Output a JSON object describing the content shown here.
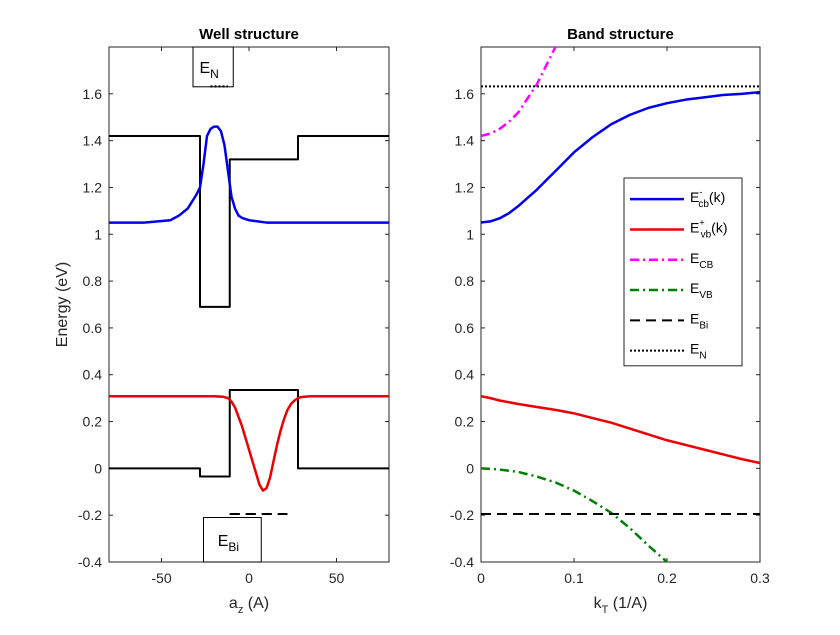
{
  "colors": {
    "axis": "#262626",
    "ecb": "#0000ee",
    "evb": "#ee0000",
    "ECB": "#ff00ff",
    "EVB": "#008000",
    "level": "#000000"
  },
  "chart_data": [
    {
      "type": "line",
      "title": "Well structure",
      "xlabel": "a",
      "xlabel_sub": "z",
      "xlabel_rest": " (A)",
      "ylabel": "Energy (eV)",
      "xlim": [
        -80,
        80
      ],
      "ylim": [
        -0.4,
        1.8
      ],
      "xticks": [
        -50,
        0,
        50
      ],
      "xtick_labels": [
        "-50",
        "0",
        "50"
      ],
      "yticks": [
        -0.4,
        -0.2,
        0,
        0.2,
        0.4,
        0.6,
        0.8,
        1,
        1.2,
        1.4,
        1.6
      ],
      "ytick_labels": [
        "-0.4",
        "-0.2",
        "0",
        "0.2",
        "0.4",
        "0.6",
        "0.8",
        "1",
        "1.2",
        "1.4",
        "1.6"
      ],
      "grid": false,
      "series": [
        {
          "key": "cb_edge",
          "color": "#000000",
          "style": "solid",
          "x": [
            -80,
            -28,
            -28,
            -11,
            -11,
            28,
            28,
            80
          ],
          "y": [
            1.42,
            1.42,
            0.69,
            0.69,
            1.32,
            1.32,
            1.42,
            1.42
          ]
        },
        {
          "key": "vb_edge",
          "color": "#000000",
          "style": "solid",
          "x": [
            -80,
            -28,
            -28,
            -11,
            -11,
            28,
            28,
            80
          ],
          "y": [
            0,
            0,
            -0.035,
            -0.035,
            0.335,
            0.335,
            0,
            0
          ]
        },
        {
          "key": "cb_state",
          "color": "#0000ee",
          "style": "solid",
          "x": [
            -80,
            -60,
            -45,
            -40,
            -35,
            -30,
            -28,
            -26,
            -24,
            -22,
            -20,
            -18,
            -16,
            -14,
            -12,
            -10,
            -8,
            -6,
            -4,
            0,
            10,
            30,
            80
          ],
          "y": [
            1.05,
            1.05,
            1.06,
            1.08,
            1.11,
            1.17,
            1.2,
            1.3,
            1.42,
            1.45,
            1.46,
            1.46,
            1.44,
            1.38,
            1.27,
            1.16,
            1.11,
            1.08,
            1.07,
            1.06,
            1.05,
            1.05,
            1.05
          ]
        },
        {
          "key": "vb_state",
          "color": "#ee0000",
          "style": "solid",
          "x": [
            -80,
            -20,
            -15,
            -12,
            -10,
            -8,
            -6,
            -4,
            -2,
            0,
            2,
            4,
            6,
            8,
            10,
            12,
            14,
            16,
            18,
            20,
            22,
            24,
            26,
            28,
            30,
            35,
            80
          ],
          "y": [
            0.308,
            0.308,
            0.306,
            0.3,
            0.285,
            0.26,
            0.22,
            0.18,
            0.13,
            0.08,
            0.03,
            -0.02,
            -0.07,
            -0.095,
            -0.085,
            -0.04,
            0.03,
            0.1,
            0.16,
            0.21,
            0.25,
            0.275,
            0.29,
            0.3,
            0.305,
            0.308,
            0.308
          ]
        },
        {
          "key": "EN_marker",
          "color": "#000000",
          "style": "dotted",
          "x": [
            -22,
            -12
          ],
          "y": [
            1.632,
            1.632
          ]
        },
        {
          "key": "EBi_marker",
          "color": "#000000",
          "style": "dashed",
          "x": [
            -11,
            22
          ],
          "y": [
            -0.195,
            -0.195
          ]
        }
      ],
      "annotations": [
        {
          "key": "EN",
          "text": "E",
          "sub": "N"
        },
        {
          "key": "EBi",
          "text": "E",
          "sub": "Bi"
        }
      ]
    },
    {
      "type": "line",
      "title": "Band structure",
      "xlabel": "k",
      "xlabel_sub": "T",
      "xlabel_rest": " (1/A)",
      "xlim": [
        0,
        0.3
      ],
      "ylim": [
        -0.4,
        1.8
      ],
      "xticks": [
        0,
        0.1,
        0.2,
        0.3
      ],
      "xtick_labels": [
        "0",
        "0.1",
        "0.2",
        "0.3"
      ],
      "yticks": [
        -0.4,
        -0.2,
        0,
        0.2,
        0.4,
        0.6,
        0.8,
        1,
        1.2,
        1.4,
        1.6
      ],
      "ytick_labels": [
        "-0.4",
        "-0.2",
        "0",
        "0.2",
        "0.4",
        "0.6",
        "0.8",
        "1",
        "1.2",
        "1.4",
        "1.6"
      ],
      "grid": false,
      "legend_position": "right",
      "series": [
        {
          "key": "ecb_k",
          "color": "#0000ee",
          "style": "solid",
          "legend": [
            "E",
            "cb",
            "-",
            "(k)"
          ],
          "x": [
            0,
            0.01,
            0.02,
            0.03,
            0.04,
            0.05,
            0.06,
            0.07,
            0.08,
            0.09,
            0.1,
            0.12,
            0.14,
            0.16,
            0.18,
            0.2,
            0.22,
            0.24,
            0.26,
            0.28,
            0.3
          ],
          "y": [
            1.05,
            1.055,
            1.068,
            1.09,
            1.12,
            1.155,
            1.19,
            1.23,
            1.27,
            1.31,
            1.35,
            1.415,
            1.47,
            1.51,
            1.54,
            1.56,
            1.575,
            1.585,
            1.595,
            1.6,
            1.607
          ]
        },
        {
          "key": "evb_k",
          "color": "#ee0000",
          "style": "solid",
          "legend": [
            "E",
            "vb",
            "+",
            "(k)"
          ],
          "x": [
            0,
            0.01,
            0.02,
            0.04,
            0.06,
            0.08,
            0.1,
            0.12,
            0.14,
            0.16,
            0.18,
            0.2,
            0.22,
            0.24,
            0.26,
            0.28,
            0.3
          ],
          "y": [
            0.308,
            0.3,
            0.29,
            0.275,
            0.262,
            0.25,
            0.235,
            0.215,
            0.195,
            0.17,
            0.145,
            0.12,
            0.1,
            0.08,
            0.06,
            0.04,
            0.023
          ]
        },
        {
          "key": "ECB",
          "color": "#ff00ff",
          "style": "dashdot",
          "legend": [
            "E",
            "CB",
            "",
            ""
          ],
          "x": [
            0,
            0.01,
            0.02,
            0.03,
            0.04,
            0.05,
            0.06,
            0.07,
            0.08
          ],
          "y": [
            1.42,
            1.43,
            1.45,
            1.48,
            1.52,
            1.58,
            1.64,
            1.72,
            1.8
          ]
        },
        {
          "key": "EVB",
          "color": "#008000",
          "style": "dashdot",
          "legend": [
            "E",
            "VB",
            "",
            ""
          ],
          "x": [
            0,
            0.02,
            0.04,
            0.06,
            0.08,
            0.1,
            0.12,
            0.14,
            0.16,
            0.18,
            0.2
          ],
          "y": [
            0,
            -0.005,
            -0.015,
            -0.035,
            -0.06,
            -0.095,
            -0.14,
            -0.19,
            -0.255,
            -0.33,
            -0.4
          ]
        },
        {
          "key": "EBi",
          "color": "#000000",
          "style": "dashed",
          "legend": [
            "E",
            "Bi",
            "",
            ""
          ],
          "x": [
            0,
            0.3
          ],
          "y": [
            -0.195,
            -0.195
          ]
        },
        {
          "key": "EN",
          "color": "#000000",
          "style": "dotted",
          "legend": [
            "E",
            "N",
            "",
            ""
          ],
          "x": [
            0,
            0.3
          ],
          "y": [
            1.632,
            1.632
          ]
        }
      ]
    }
  ]
}
